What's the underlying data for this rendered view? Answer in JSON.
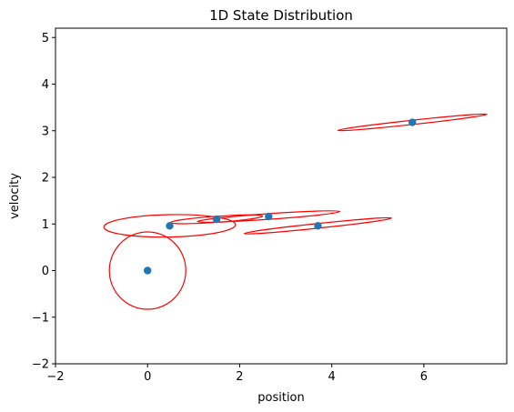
{
  "chart_data": {
    "type": "scatter",
    "title": "1D State Distribution",
    "xlabel": "position",
    "ylabel": "velocity",
    "xlim": [
      -2,
      7.8
    ],
    "ylim": [
      -2,
      5.2
    ],
    "x_ticks": [
      -2,
      0,
      2,
      4,
      6
    ],
    "y_ticks": [
      -2,
      -1,
      0,
      1,
      2,
      3,
      4,
      5
    ],
    "x_tick_labels": [
      "−2",
      "0",
      "2",
      "4",
      "6"
    ],
    "y_tick_labels": [
      "−2",
      "−1",
      "0",
      "1",
      "2",
      "3",
      "4",
      "5"
    ],
    "grid": false,
    "colors": {
      "points": "#1f77b4",
      "ellipses": "#ff0000"
    },
    "series": [
      {
        "points": [
          {
            "x": 0.0,
            "y": 0.0
          },
          {
            "x": 0.48,
            "y": 0.96
          },
          {
            "x": 1.5,
            "y": 1.1
          },
          {
            "x": 2.63,
            "y": 1.16
          },
          {
            "x": 3.7,
            "y": 0.96
          },
          {
            "x": 5.75,
            "y": 3.18
          }
        ]
      }
    ],
    "ellipses": [
      {
        "cx": 0.0,
        "cy": 0.0,
        "a": 0.83,
        "b": 0.83,
        "angle_deg": 0
      },
      {
        "cx": 0.48,
        "cy": 0.96,
        "a": 1.43,
        "b": 0.24,
        "angle_deg": 1.1
      },
      {
        "cx": 1.5,
        "cy": 1.1,
        "a": 1.0,
        "b": 0.065,
        "angle_deg": 4.0
      },
      {
        "cx": 2.63,
        "cy": 1.16,
        "a": 1.55,
        "b": 0.06,
        "angle_deg": 4.0
      },
      {
        "cx": 3.7,
        "cy": 0.96,
        "a": 1.61,
        "b": 0.05,
        "angle_deg": 6.0
      },
      {
        "cx": 5.75,
        "cy": 3.18,
        "a": 1.63,
        "b": 0.045,
        "angle_deg": 6.2
      }
    ]
  }
}
